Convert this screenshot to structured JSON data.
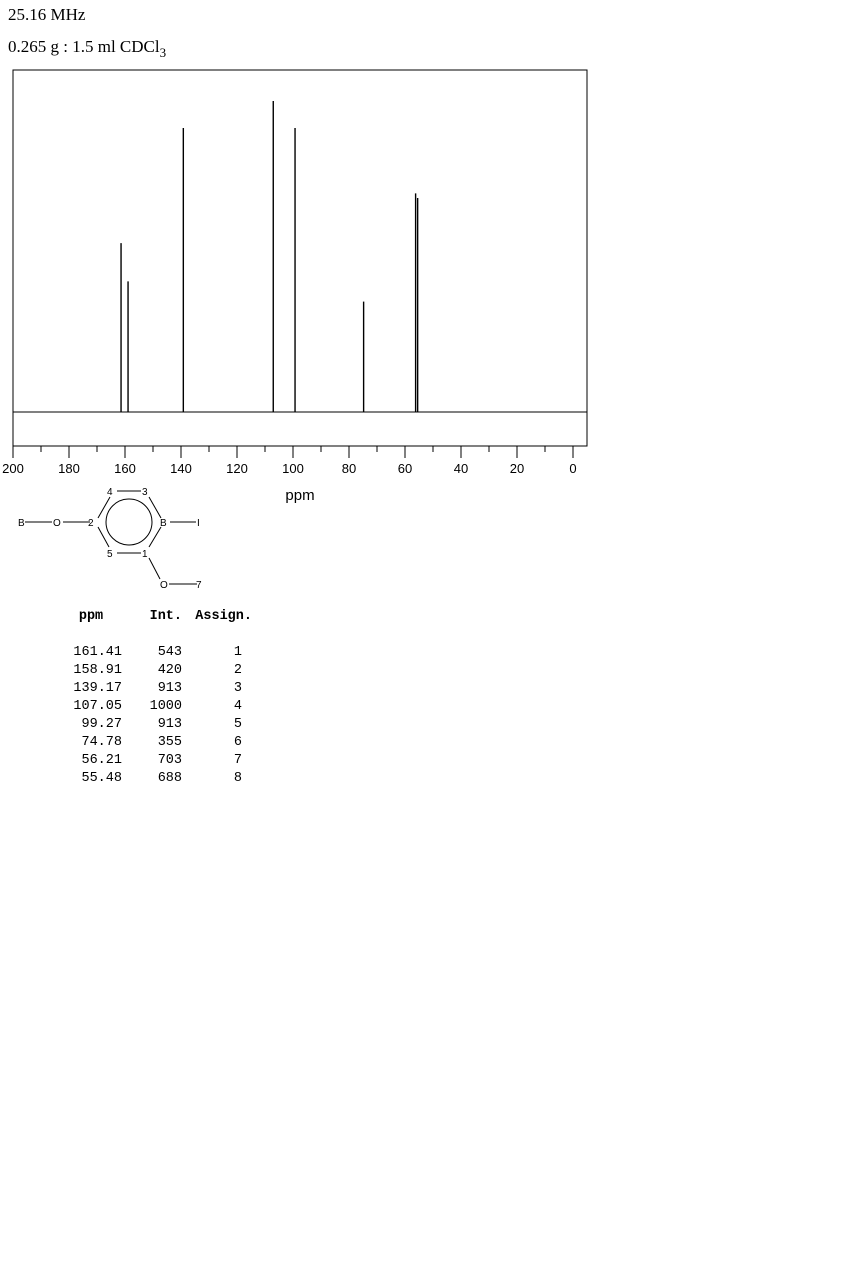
{
  "header": {
    "frequency": "25.16 MHz",
    "sample_prefix": "0.265 g : 1.5 ml CDCl",
    "sample_subscript": "3"
  },
  "chart_data": {
    "type": "line",
    "xlabel": "ppm",
    "xlim": [
      200,
      0
    ],
    "x_reversed": true,
    "x_ticks": [
      200,
      180,
      160,
      140,
      120,
      100,
      80,
      60,
      40,
      20,
      0
    ],
    "ylim": [
      0,
      1000
    ],
    "peaks": [
      {
        "x": 161.41,
        "y": 543
      },
      {
        "x": 158.91,
        "y": 420
      },
      {
        "x": 139.17,
        "y": 913
      },
      {
        "x": 107.05,
        "y": 1000
      },
      {
        "x": 99.27,
        "y": 913
      },
      {
        "x": 74.78,
        "y": 355
      },
      {
        "x": 56.21,
        "y": 703
      },
      {
        "x": 55.48,
        "y": 688
      }
    ]
  },
  "structure": {
    "atoms": [
      "B",
      "O",
      "2",
      "4",
      "3",
      "B",
      "I",
      "5",
      "1",
      "O",
      "7"
    ]
  },
  "table": {
    "headers": [
      "ppm",
      "Int.",
      "Assign."
    ],
    "rows": [
      [
        "161.41",
        "543",
        "1"
      ],
      [
        "158.91",
        "420",
        "2"
      ],
      [
        "139.17",
        "913",
        "3"
      ],
      [
        "107.05",
        "1000",
        "4"
      ],
      [
        "99.27",
        "913",
        "5"
      ],
      [
        "74.78",
        "355",
        "6"
      ],
      [
        "56.21",
        "703",
        "7"
      ],
      [
        "55.48",
        "688",
        "8"
      ]
    ]
  }
}
